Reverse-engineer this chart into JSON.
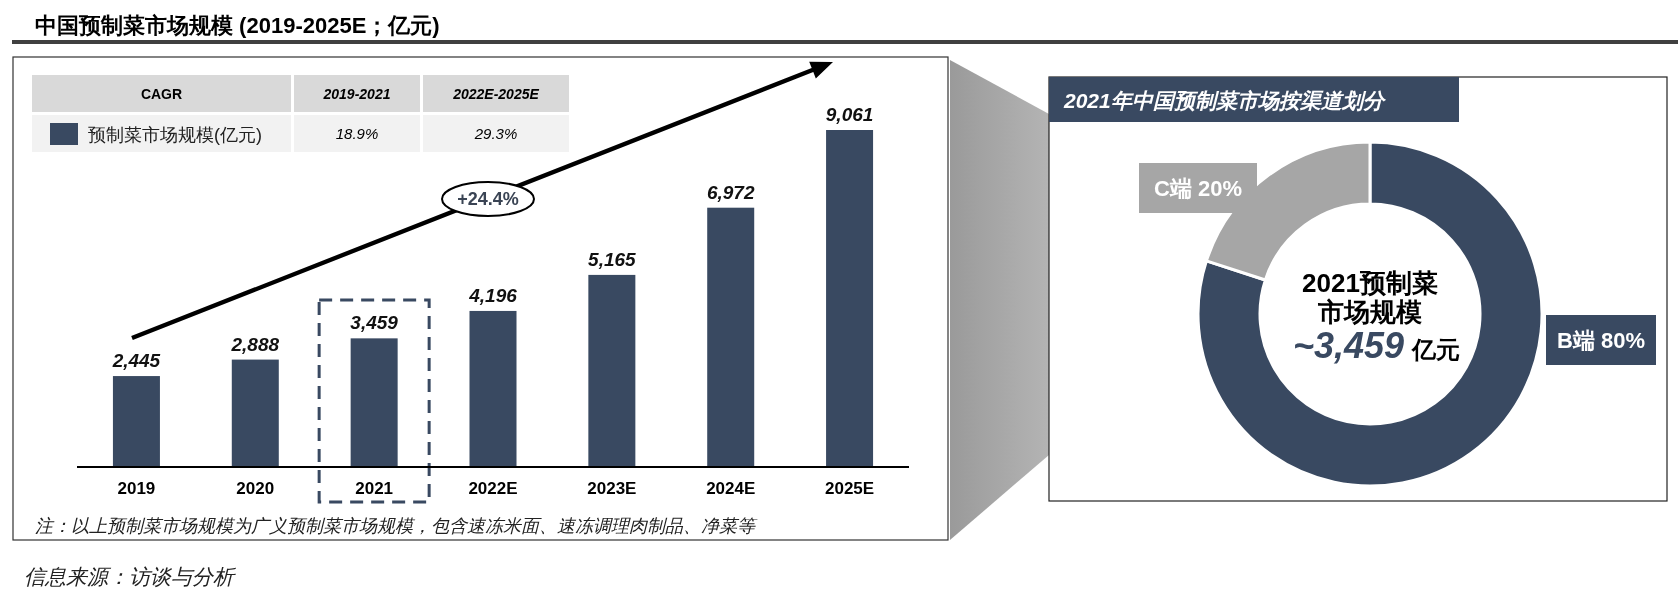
{
  "chart_data": [
    {
      "type": "bar",
      "title": "中国预制菜市场规模 (2019-2025E；亿元)",
      "categories": [
        "2019",
        "2020",
        "2021",
        "2022E",
        "2023E",
        "2024E",
        "2025E"
      ],
      "series": [
        {
          "name": "预制菜市场规模(亿元)",
          "color": "#394961",
          "values": [
            2445,
            2888,
            3459,
            4196,
            5165,
            6972,
            9061
          ],
          "value_labels": [
            "2,445",
            "2,888",
            "3,459",
            "4,196",
            "5,165",
            "6,972",
            "9,061"
          ]
        }
      ],
      "legend": "top left",
      "tick_labels": "x",
      "annotations": [
        "CAGR",
        "2019-2021",
        "2022E-2025E",
        "18.9%",
        "29.3%",
        "+24.4%",
        "注：以上预制菜市场规模为广义预制菜市场规模，包含速冻米面、速冻调理肉制品、净菜等",
        "信息来源：访谈与分析"
      ]
    },
    {
      "type": "donut",
      "title": "2021年中国预制菜市场按渠道划分",
      "categories": [
        "B端",
        "C端"
      ],
      "values": [
        80,
        20
      ],
      "colors": [
        "#394961",
        "#a6a6a6"
      ],
      "value_labels": [
        "80%",
        "20%"
      ],
      "annotations": [
        "2021预制菜",
        "市场规模",
        "~3,459",
        "亿元"
      ]
    }
  ]
}
